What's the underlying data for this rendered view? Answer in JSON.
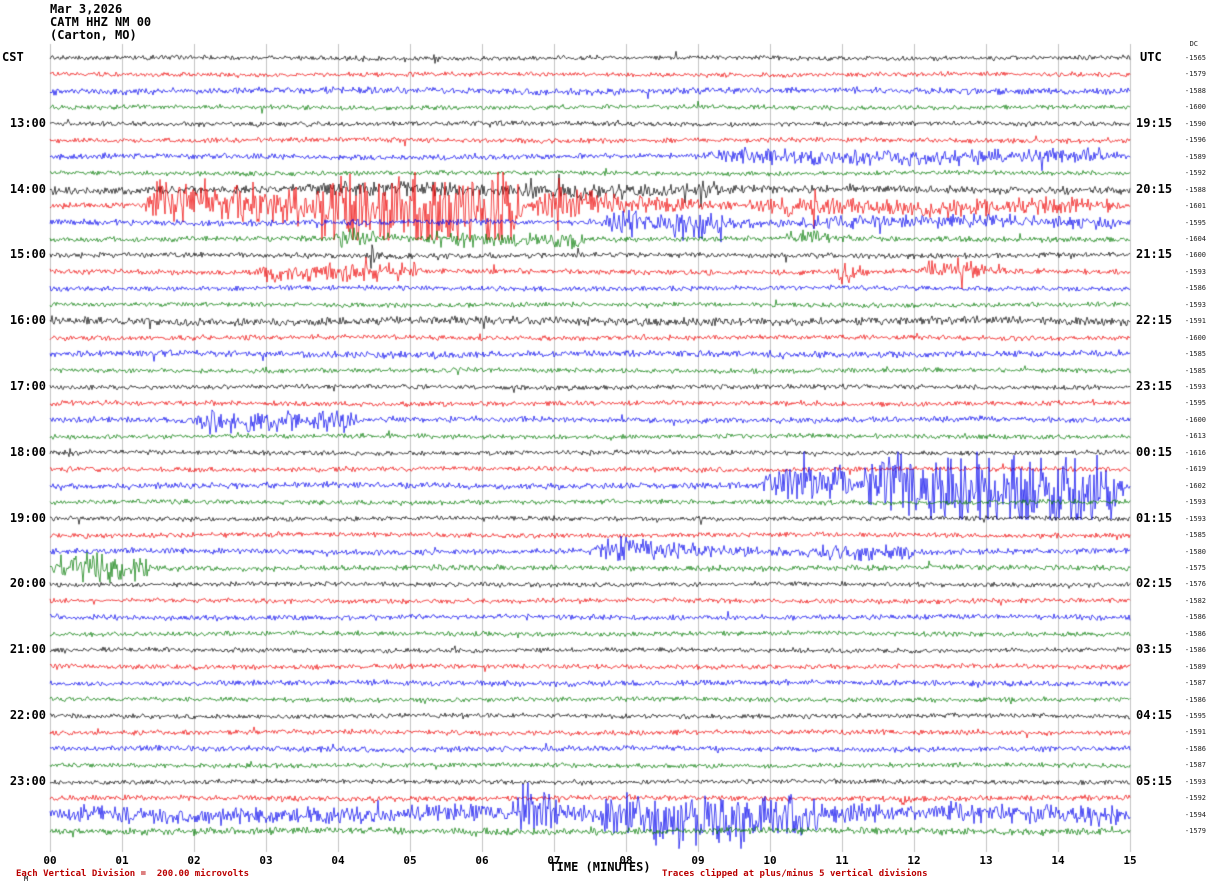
{
  "header": {
    "date": "Mar 3,2026",
    "station": "CATM HHZ NM 00",
    "location": "(Carton, MO)"
  },
  "axes": {
    "left_label": "CST",
    "right_label": "UTC",
    "dc_label": "DC",
    "x_title": "TIME (MINUTES)",
    "x_ticks": [
      "00",
      "01",
      "02",
      "03",
      "04",
      "05",
      "06",
      "07",
      "08",
      "09",
      "10",
      "11",
      "12",
      "13",
      "14",
      "15"
    ]
  },
  "footer": {
    "left_note": "Each Vertical Division =  200.00 microvolts",
    "right_note": "Traces clipped at plus/minus 5 vertical divisions",
    "corner_mark": "M"
  },
  "colors": {
    "trace_cycle": [
      "#000000",
      "#ee0000",
      "#0000ee",
      "#007a00"
    ],
    "grid": "#9a9a9a",
    "note": "#bb0000"
  },
  "chart_data": {
    "type": "line",
    "subtype": "helicorder-seismogram",
    "x_range_minutes": [
      0,
      15
    ],
    "minutes_per_line": 15,
    "microvolts_per_division": 200.0,
    "clip_divisions": 5,
    "legend": "each row is a 15-minute seismic trace; colors cycle black/red/blue/green; events listed as [start_min, end_min, peak_amp_px, envelope(0=burst,1=sustained)]",
    "rows": [
      {
        "cst": "",
        "utc": "",
        "dc": -1565,
        "noise": 1.9,
        "events": [
          [
            5.3,
            5.5,
            6,
            0
          ]
        ]
      },
      {
        "cst": "",
        "utc": "",
        "dc": -1579,
        "noise": 1.9,
        "events": []
      },
      {
        "cst": "",
        "utc": "",
        "dc": -1588,
        "noise": 2.6,
        "events": []
      },
      {
        "cst": "",
        "utc": "",
        "dc": -1600,
        "noise": 1.9,
        "events": []
      },
      {
        "cst": "13:00",
        "utc": "19:15",
        "dc": -1590,
        "noise": 1.9,
        "events": [
          [
            6.1,
            6.3,
            5,
            0
          ]
        ]
      },
      {
        "cst": "",
        "utc": "",
        "dc": -1596,
        "noise": 2.0,
        "events": []
      },
      {
        "cst": "",
        "utc": "",
        "dc": -1589,
        "noise": 2.2,
        "events": [
          [
            9,
            14.9,
            4,
            1
          ]
        ]
      },
      {
        "cst": "",
        "utc": "",
        "dc": -1592,
        "noise": 1.9,
        "events": []
      },
      {
        "cst": "14:00",
        "utc": "20:15",
        "dc": -1588,
        "noise": 3.2,
        "events": [
          [
            3.5,
            9.5,
            3,
            1
          ]
        ]
      },
      {
        "cst": "",
        "utc": "",
        "dc": -1601,
        "noise": 2.2,
        "events": [
          [
            1.3,
            3.6,
            14,
            1
          ],
          [
            3.6,
            6.6,
            30,
            1
          ],
          [
            6.6,
            9.6,
            16,
            0
          ],
          [
            9.6,
            14.9,
            5,
            1
          ]
        ]
      },
      {
        "cst": "",
        "utc": "",
        "dc": -1595,
        "noise": 2.6,
        "events": [
          [
            7.6,
            10.3,
            9,
            0
          ],
          [
            8.6,
            9.4,
            7,
            1
          ],
          [
            10.3,
            14.9,
            3,
            1
          ]
        ]
      },
      {
        "cst": "",
        "utc": "",
        "dc": -1604,
        "noise": 2.2,
        "events": [
          [
            3.9,
            5.2,
            7,
            0
          ],
          [
            5.2,
            7.5,
            4,
            1
          ],
          [
            10.2,
            11.2,
            7,
            0
          ]
        ]
      },
      {
        "cst": "15:00",
        "utc": "21:15",
        "dc": -1600,
        "noise": 2.2,
        "events": [
          [
            4.4,
            4.7,
            10,
            0
          ],
          [
            7.3,
            7.5,
            5,
            0
          ]
        ]
      },
      {
        "cst": "",
        "utc": "",
        "dc": -1593,
        "noise": 2.2,
        "events": [
          [
            2.8,
            5.2,
            5,
            1
          ],
          [
            10.9,
            11.4,
            13,
            0
          ],
          [
            12.1,
            13.3,
            5,
            1
          ]
        ]
      },
      {
        "cst": "",
        "utc": "",
        "dc": -1586,
        "noise": 2.0,
        "events": []
      },
      {
        "cst": "",
        "utc": "",
        "dc": -1593,
        "noise": 1.9,
        "events": []
      },
      {
        "cst": "16:00",
        "utc": "22:15",
        "dc": -1591,
        "noise": 3.3,
        "events": []
      },
      {
        "cst": "",
        "utc": "",
        "dc": -1600,
        "noise": 2.0,
        "events": []
      },
      {
        "cst": "",
        "utc": "",
        "dc": -1585,
        "noise": 2.6,
        "events": []
      },
      {
        "cst": "",
        "utc": "",
        "dc": -1585,
        "noise": 1.9,
        "events": []
      },
      {
        "cst": "17:00",
        "utc": "23:15",
        "dc": -1593,
        "noise": 1.9,
        "events": []
      },
      {
        "cst": "",
        "utc": "",
        "dc": -1595,
        "noise": 2.0,
        "events": []
      },
      {
        "cst": "",
        "utc": "",
        "dc": -1600,
        "noise": 2.4,
        "events": [
          [
            2.0,
            4.3,
            6,
            1
          ]
        ]
      },
      {
        "cst": "",
        "utc": "",
        "dc": -1613,
        "noise": 1.9,
        "events": []
      },
      {
        "cst": "18:00",
        "utc": "00:15",
        "dc": -1616,
        "noise": 1.9,
        "events": [
          [
            0.2,
            0.4,
            5,
            0
          ]
        ]
      },
      {
        "cst": "",
        "utc": "",
        "dc": -1619,
        "noise": 2.0,
        "events": []
      },
      {
        "cst": "",
        "utc": "",
        "dc": -1602,
        "noise": 2.6,
        "events": [
          [
            9.9,
            11.2,
            10,
            1
          ],
          [
            11.2,
            14.95,
            26,
            1
          ]
        ]
      },
      {
        "cst": "",
        "utc": "",
        "dc": -1593,
        "noise": 2.0,
        "events": []
      },
      {
        "cst": "19:00",
        "utc": "01:15",
        "dc": -1593,
        "noise": 1.9,
        "events": []
      },
      {
        "cst": "",
        "utc": "",
        "dc": -1585,
        "noise": 2.0,
        "events": []
      },
      {
        "cst": "",
        "utc": "",
        "dc": -1580,
        "noise": 2.4,
        "events": [
          [
            7.4,
            10.6,
            8,
            0
          ],
          [
            10.6,
            12,
            4,
            1
          ]
        ]
      },
      {
        "cst": "",
        "utc": "",
        "dc": -1575,
        "noise": 2.2,
        "events": [
          [
            0,
            1.4,
            9,
            1
          ]
        ]
      },
      {
        "cst": "20:00",
        "utc": "02:15",
        "dc": -1576,
        "noise": 1.9,
        "events": []
      },
      {
        "cst": "",
        "utc": "",
        "dc": -1582,
        "noise": 2.0,
        "events": []
      },
      {
        "cst": "",
        "utc": "",
        "dc": -1586,
        "noise": 2.2,
        "events": []
      },
      {
        "cst": "",
        "utc": "",
        "dc": -1586,
        "noise": 1.9,
        "events": []
      },
      {
        "cst": "21:00",
        "utc": "03:15",
        "dc": -1586,
        "noise": 1.9,
        "events": []
      },
      {
        "cst": "",
        "utc": "",
        "dc": -1589,
        "noise": 2.0,
        "events": []
      },
      {
        "cst": "",
        "utc": "",
        "dc": -1587,
        "noise": 2.2,
        "events": []
      },
      {
        "cst": "",
        "utc": "",
        "dc": -1586,
        "noise": 1.9,
        "events": []
      },
      {
        "cst": "22:00",
        "utc": "04:15",
        "dc": -1595,
        "noise": 1.9,
        "events": []
      },
      {
        "cst": "",
        "utc": "",
        "dc": -1591,
        "noise": 2.0,
        "events": []
      },
      {
        "cst": "",
        "utc": "",
        "dc": -1586,
        "noise": 2.2,
        "events": []
      },
      {
        "cst": "",
        "utc": "",
        "dc": -1587,
        "noise": 1.9,
        "events": []
      },
      {
        "cst": "23:00",
        "utc": "05:15",
        "dc": -1593,
        "noise": 1.9,
        "events": []
      },
      {
        "cst": "",
        "utc": "",
        "dc": -1592,
        "noise": 2.2,
        "events": [
          [
            11.8,
            12.0,
            5,
            0
          ]
        ]
      },
      {
        "cst": "",
        "utc": "",
        "dc": -1594,
        "noise": 4.0,
        "events": [
          [
            0,
            6.4,
            3,
            1
          ],
          [
            6.4,
            7.6,
            22,
            0
          ],
          [
            7.6,
            10.8,
            14,
            1
          ],
          [
            10.8,
            12.2,
            8,
            0
          ],
          [
            12.2,
            14.95,
            4,
            1
          ]
        ]
      },
      {
        "cst": "",
        "utc": "",
        "dc": -1579,
        "noise": 2.8,
        "events": []
      }
    ]
  }
}
